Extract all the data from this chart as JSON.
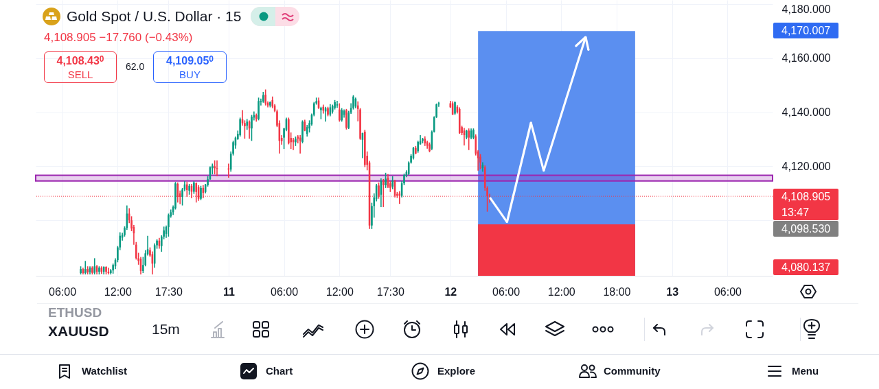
{
  "chart_data": {
    "type": "candlestick",
    "title": "Gold Spot / U.S. Dollar · 15",
    "subtitle": "4,108.905 −17.760 (−0.43%)",
    "xlim": [
      "--12-10T03:30",
      "--12-13T10:30"
    ],
    "xticks": [
      {
        "value": "--12-10T06:00",
        "label": "06:00"
      },
      {
        "value": "--12-10T12:00",
        "label": "12:00"
      },
      {
        "value": "--12-10T17:30",
        "label": "17:30"
      },
      {
        "value": "--12-11T00:00",
        "label": "11"
      },
      {
        "value": "--12-11T06:00",
        "label": "06:00"
      },
      {
        "value": "--12-11T12:00",
        "label": "12:00"
      },
      {
        "value": "--12-11T17:30",
        "label": "17:30"
      },
      {
        "value": "--12-12T00:00",
        "label": "12"
      },
      {
        "value": "--12-12T06:00",
        "label": "06:00"
      },
      {
        "value": "--12-12T12:00",
        "label": "12:00"
      },
      {
        "value": "--12-12T18:00",
        "label": "18:00"
      },
      {
        "value": "--12-13T00:00",
        "label": "13"
      },
      {
        "value": "--12-13T06:00",
        "label": "06:00"
      }
    ],
    "ylim": [
      4079.5,
      4181.5
    ],
    "yticks": [
      {
        "value": 4100,
        "label": null
      },
      {
        "value": 4120,
        "label": "4,120.000"
      },
      {
        "value": 4140,
        "label": "4,140.000"
      },
      {
        "value": 4160,
        "label": "4,160.000"
      },
      {
        "value": 4180,
        "label": "4,180.000"
      }
    ],
    "grid": true,
    "x": [
      "--12-10T08:00",
      "--12-10T08:15",
      "--12-10T08:30",
      "--12-10T08:45",
      "--12-10T09:00",
      "--12-10T09:15",
      "--12-10T09:30",
      "--12-10T09:45",
      "--12-10T10:00",
      "--12-10T10:15",
      "--12-10T10:30",
      "--12-10T10:45",
      "--12-10T11:00",
      "--12-10T11:15",
      "--12-10T11:30",
      "--12-10T11:45",
      "--12-10T12:00",
      "--12-10T12:15",
      "--12-10T12:30",
      "--12-10T12:45",
      "--12-10T13:00",
      "--12-10T13:15",
      "--12-10T13:30",
      "--12-10T13:45",
      "--12-10T14:00",
      "--12-10T14:15",
      "--12-10T14:30",
      "--12-10T14:45",
      "--12-10T15:00",
      "--12-10T15:15",
      "--12-10T15:30",
      "--12-10T15:45",
      "--12-10T16:00",
      "--12-10T16:15",
      "--12-10T16:30",
      "--12-10T16:45",
      "--12-10T17:00",
      "--12-10T17:15",
      "--12-10T17:30",
      "--12-10T17:45",
      "--12-10T18:00",
      "--12-10T18:15",
      "--12-10T18:30",
      "--12-10T18:45",
      "--12-10T19:00",
      "--12-10T19:15",
      "--12-10T19:30",
      "--12-10T19:45",
      "--12-10T20:00",
      "--12-10T20:15",
      "--12-10T20:30",
      "--12-10T20:45",
      "--12-10T21:00",
      "--12-10T21:15",
      "--12-10T21:30",
      "--12-10T21:45",
      "--12-10T22:00",
      "--12-10T22:15",
      "--12-10T22:30",
      "--12-10T22:45",
      "--12-11T00:00",
      "--12-11T00:15",
      "--12-11T00:30",
      "--12-11T00:45",
      "--12-11T01:00",
      "--12-11T01:15",
      "--12-11T01:30",
      "--12-11T01:45",
      "--12-11T02:00",
      "--12-11T02:15",
      "--12-11T02:30",
      "--12-11T02:45",
      "--12-11T03:00",
      "--12-11T03:15",
      "--12-11T03:30",
      "--12-11T03:45",
      "--12-11T04:00",
      "--12-11T04:15",
      "--12-11T04:30",
      "--12-11T04:45",
      "--12-11T05:00",
      "--12-11T05:15",
      "--12-11T05:30",
      "--12-11T05:45",
      "--12-11T06:00",
      "--12-11T06:15",
      "--12-11T06:30",
      "--12-11T06:45",
      "--12-11T07:00",
      "--12-11T07:15",
      "--12-11T07:30",
      "--12-11T07:45",
      "--12-11T08:00",
      "--12-11T08:15",
      "--12-11T08:30",
      "--12-11T08:45",
      "--12-11T09:00",
      "--12-11T09:15",
      "--12-11T09:30",
      "--12-11T09:45",
      "--12-11T10:00",
      "--12-11T10:15",
      "--12-11T10:30",
      "--12-11T10:45",
      "--12-11T11:00",
      "--12-11T11:15",
      "--12-11T11:30",
      "--12-11T11:45",
      "--12-11T12:00",
      "--12-11T12:15",
      "--12-11T12:30",
      "--12-11T12:45",
      "--12-11T13:00",
      "--12-11T13:15",
      "--12-11T13:30",
      "--12-11T13:45",
      "--12-11T14:00",
      "--12-11T14:15",
      "--12-11T14:30",
      "--12-11T14:45",
      "--12-11T15:00",
      "--12-11T15:15",
      "--12-11T15:30",
      "--12-11T15:45",
      "--12-11T16:00",
      "--12-11T16:15",
      "--12-11T16:30",
      "--12-11T16:45",
      "--12-11T17:00",
      "--12-11T17:15",
      "--12-11T17:30",
      "--12-11T17:45",
      "--12-11T18:00",
      "--12-11T18:15",
      "--12-11T18:30",
      "--12-11T18:45",
      "--12-11T19:00",
      "--12-11T19:15",
      "--12-11T19:30",
      "--12-11T19:45",
      "--12-11T20:00",
      "--12-11T20:15",
      "--12-11T20:30",
      "--12-11T20:45",
      "--12-11T21:00",
      "--12-11T21:15",
      "--12-11T21:30",
      "--12-11T21:45",
      "--12-11T22:00",
      "--12-11T22:15",
      "--12-11T22:30",
      "--12-11T22:45",
      "--12-12T00:00",
      "--12-12T00:15",
      "--12-12T00:30",
      "--12-12T00:45",
      "--12-12T01:00",
      "--12-12T01:15",
      "--12-12T01:30",
      "--12-12T01:45",
      "--12-12T02:00",
      "--12-12T02:15",
      "--12-12T02:30",
      "--12-12T02:45",
      "--12-12T03:00",
      "--12-12T03:15",
      "--12-12T03:30",
      "--12-12T03:45",
      "--12-12T04:00",
      "--12-12T04:15"
    ],
    "ohlc": [
      [
        4080.5,
        4083,
        4080,
        4082
      ],
      [
        4082,
        4082.5,
        4080,
        4080.5
      ],
      [
        4080.5,
        4085,
        4080,
        4082
      ],
      [
        4082,
        4083,
        4080,
        4080.8
      ],
      [
        4080.8,
        4083,
        4080,
        4082.5
      ],
      [
        4082.5,
        4083,
        4080,
        4080.6
      ],
      [
        4080.6,
        4086,
        4080,
        4083
      ],
      [
        4083,
        4083.5,
        4080,
        4081
      ],
      [
        4081,
        4083,
        4080,
        4082.5
      ],
      [
        4082.5,
        4083,
        4080.2,
        4081
      ],
      [
        4081,
        4083,
        4080,
        4082.8
      ],
      [
        4082.8,
        4083,
        4080,
        4081
      ],
      [
        4081,
        4082.5,
        4080,
        4080.5
      ],
      [
        4080.5,
        4082,
        4080,
        4081.5
      ],
      [
        4081.5,
        4084,
        4080.3,
        4083.5
      ],
      [
        4083,
        4086,
        4082,
        4085.3
      ],
      [
        4085.3,
        4090.5,
        4084.5,
        4090
      ],
      [
        4090,
        4095.6,
        4089,
        4094.3
      ],
      [
        4093.6,
        4095.4,
        4092.5,
        4094.6
      ],
      [
        4094.6,
        4097.8,
        4094,
        4097.2
      ],
      [
        4097.2,
        4105.5,
        4096.5,
        4102.5
      ],
      [
        4102.5,
        4104.5,
        4099,
        4100
      ],
      [
        4100,
        4101.5,
        4096,
        4097
      ],
      [
        4097.5,
        4098.3,
        4091,
        4095.2
      ],
      [
        4091,
        4092,
        4085.5,
        4086
      ],
      [
        4086,
        4088,
        4083.6,
        4085
      ],
      [
        4085.8,
        4086.5,
        4080,
        4081.3
      ],
      [
        4081.3,
        4086.5,
        4080.5,
        4083.5
      ],
      [
        4083.5,
        4089,
        4083,
        4087.8
      ],
      [
        4087.5,
        4094.3,
        4087,
        4089.3
      ],
      [
        4089,
        4090,
        4086.5,
        4087
      ],
      [
        4087.5,
        4088.5,
        4080,
        4084
      ],
      [
        4084,
        4091.5,
        4082.5,
        4090.8
      ],
      [
        4090.8,
        4093,
        4089.5,
        4092.5
      ],
      [
        4092.5,
        4093.5,
        4089.5,
        4090.5
      ],
      [
        4090.5,
        4094.5,
        4088.4,
        4094
      ],
      [
        4094,
        4097.7,
        4093,
        4096.3
      ],
      [
        4095,
        4098.1,
        4093.5,
        4097.5
      ],
      [
        4097.5,
        4102.5,
        4094,
        4101.9
      ],
      [
        4101.5,
        4104,
        4101,
        4103
      ],
      [
        4103,
        4105.5,
        4102,
        4104.9
      ],
      [
        4104.5,
        4114.2,
        4104,
        4113.7
      ],
      [
        4113.5,
        4114,
        4106.6,
        4108.7
      ],
      [
        4110,
        4111,
        4106,
        4108.7
      ],
      [
        4108.7,
        4112,
        4105.5,
        4111.4
      ],
      [
        4111.4,
        4114.6,
        4110.8,
        4113.3
      ],
      [
        4113.3,
        4114.3,
        4108.7,
        4111.2
      ],
      [
        4111,
        4113.5,
        4109.5,
        4112.8
      ],
      [
        4112.8,
        4113.5,
        4108.2,
        4110.6
      ],
      [
        4110.6,
        4114.5,
        4109.8,
        4114
      ],
      [
        4113.8,
        4114,
        4106.6,
        4110.5
      ],
      [
        4112.3,
        4113,
        4107.2,
        4108
      ],
      [
        4108,
        4112.8,
        4107.5,
        4112
      ],
      [
        4112,
        4113,
        4108.2,
        4110.2
      ],
      [
        4110.5,
        4113.5,
        4110,
        4113.2
      ],
      [
        4113,
        4116.3,
        4112.5,
        4115.2
      ],
      [
        4115.2,
        4120,
        4115,
        4119.6
      ],
      [
        4119.3,
        4121,
        4117,
        4120.2
      ],
      [
        4120,
        4122.2,
        4117,
        4119.3
      ],
      [
        4119.3,
        4122.2,
        4116.3,
        4119
      ],
      [
        4119.2,
        4121,
        4115.8,
        4118.8
      ],
      [
        4118.8,
        4125.5,
        4118,
        4124.7
      ],
      [
        4124.7,
        4129.5,
        4124,
        4128.9
      ],
      [
        4127.7,
        4131,
        4126.5,
        4130.6
      ],
      [
        4130,
        4133.2,
        4129.8,
        4132
      ],
      [
        4131.5,
        4138,
        4131,
        4137.4
      ],
      [
        4137.4,
        4140.8,
        4135,
        4135.9
      ],
      [
        4136,
        4137,
        4130.2,
        4134.8
      ],
      [
        4135,
        4137.5,
        4133.5,
        4136.5
      ],
      [
        4136.5,
        4137,
        4130.2,
        4134
      ],
      [
        4134,
        4139,
        4129.4,
        4138.3
      ],
      [
        4138,
        4140.3,
        4137,
        4138.9
      ],
      [
        4138.9,
        4139.5,
        4136.5,
        4137.4
      ],
      [
        4137.5,
        4145.4,
        4137,
        4144.1
      ],
      [
        4143.8,
        4145,
        4142.5,
        4144.2
      ],
      [
        4144,
        4147.5,
        4143.5,
        4146.3
      ],
      [
        4146.5,
        4148.4,
        4142.5,
        4143.3
      ],
      [
        4143.5,
        4144,
        4141.8,
        4142.5
      ],
      [
        4142.5,
        4144,
        4141.8,
        4143.7
      ],
      [
        4144.5,
        4145.8,
        4141.5,
        4142.1
      ],
      [
        4142.5,
        4143,
        4140,
        4140.5
      ],
      [
        4140.3,
        4141,
        4134.5,
        4135
      ],
      [
        4136,
        4137,
        4124.7,
        4129.4
      ],
      [
        4130.5,
        4131.5,
        4128,
        4129.3
      ],
      [
        4130.6,
        4134.2,
        4126.4,
        4134
      ],
      [
        4133.5,
        4138,
        4133,
        4137.4
      ],
      [
        4137.4,
        4138,
        4128.1,
        4128.5
      ],
      [
        4130.5,
        4132.5,
        4126.4,
        4128.9
      ],
      [
        4129.8,
        4130.5,
        4126,
        4128.9
      ],
      [
        4128.9,
        4131,
        4127.5,
        4130.2
      ],
      [
        4131,
        4131.5,
        4128.5,
        4130.2
      ],
      [
        4130.6,
        4131.5,
        4124.7,
        4129.4
      ],
      [
        4129,
        4137,
        4128.5,
        4136.5
      ],
      [
        4136.5,
        4137.2,
        4133,
        4133.2
      ],
      [
        4132,
        4135.3,
        4131,
        4134.5
      ],
      [
        4134,
        4137,
        4132.5,
        4136
      ],
      [
        4135.5,
        4139.5,
        4135,
        4139.1
      ],
      [
        4139.1,
        4143.8,
        4138.5,
        4143.3
      ],
      [
        4143.3,
        4145.4,
        4142.8,
        4144.1
      ],
      [
        4144.3,
        4145.4,
        4141.2,
        4141.5
      ],
      [
        4140.8,
        4142,
        4137.4,
        4141.6
      ],
      [
        4142,
        4142.8,
        4139.5,
        4140.6
      ],
      [
        4140.3,
        4142,
        4136.5,
        4141.5
      ],
      [
        4141.5,
        4142,
        4138.5,
        4139.1
      ],
      [
        4139.1,
        4143,
        4138.5,
        4141.8
      ],
      [
        4140.2,
        4142.8,
        4139.5,
        4142.4
      ],
      [
        4141.6,
        4144.5,
        4141,
        4143.7
      ],
      [
        4142.5,
        4144.2,
        4141.6,
        4142.9
      ],
      [
        4141,
        4143.3,
        4136.5,
        4137
      ],
      [
        4137,
        4141.5,
        4136.5,
        4140.8
      ],
      [
        4139,
        4141,
        4138,
        4140.5
      ],
      [
        4140.8,
        4141.2,
        4133.6,
        4134.2
      ],
      [
        4134.2,
        4140.5,
        4133.8,
        4139.9
      ],
      [
        4139.9,
        4143.3,
        4139.4,
        4141.6
      ],
      [
        4141.6,
        4146.3,
        4141,
        4145.8
      ],
      [
        4142.1,
        4145.4,
        4141.5,
        4145
      ],
      [
        4142.5,
        4144,
        4136.6,
        4141.2
      ],
      [
        4141,
        4141.5,
        4129.8,
        4130.2
      ],
      [
        4129.8,
        4132.4,
        4123,
        4132.3
      ],
      [
        4132.8,
        4133.5,
        4119.7,
        4120.5
      ],
      [
        4123.9,
        4125.5,
        4118.5,
        4120.5
      ],
      [
        4121.4,
        4122,
        4096.8,
        4098.1
      ],
      [
        4098.1,
        4106.5,
        4096.8,
        4105.3
      ],
      [
        4105.3,
        4110,
        4101,
        4108.5
      ],
      [
        4107.8,
        4113.5,
        4107,
        4112.9
      ],
      [
        4112.9,
        4114,
        4108,
        4108.7
      ],
      [
        4109.5,
        4115.5,
        4104.9,
        4114.6
      ],
      [
        4114.6,
        4115.3,
        4104.9,
        4113
      ],
      [
        4113,
        4117.6,
        4112,
        4115.4
      ],
      [
        4115.8,
        4117.1,
        4112,
        4112.5
      ],
      [
        4113.7,
        4114.5,
        4110.5,
        4112
      ],
      [
        4112.5,
        4116.3,
        4111.5,
        4114.6
      ],
      [
        4114.6,
        4115,
        4108.5,
        4109.1
      ],
      [
        4109.8,
        4110.5,
        4108.3,
        4109.1
      ],
      [
        4109.9,
        4110.8,
        4106.1,
        4109.1
      ],
      [
        4109.1,
        4114.5,
        4108.5,
        4113.7
      ],
      [
        4113.7,
        4117.3,
        4113,
        4116.8
      ],
      [
        4116.5,
        4118.5,
        4116,
        4117.9
      ],
      [
        4117.1,
        4121.8,
        4116.8,
        4121.4
      ],
      [
        4121.4,
        4124.5,
        4121,
        4123.9
      ],
      [
        4123,
        4127.2,
        4122.5,
        4126.8
      ],
      [
        4126.8,
        4127.5,
        4124.5,
        4124.7
      ],
      [
        4125.6,
        4129.5,
        4125,
        4129
      ],
      [
        4128.1,
        4131.5,
        4128,
        4129.4
      ],
      [
        4129.4,
        4130.5,
        4128.5,
        4130.2
      ],
      [
        4130.2,
        4131.1,
        4127.5,
        4128.5
      ],
      [
        4128.9,
        4129.5,
        4126.5,
        4127.6
      ],
      [
        4128.1,
        4128.8,
        4125.2,
        4125.6
      ],
      [
        4126.5,
        4133.2,
        4126,
        4132.8
      ],
      [
        4132.8,
        4138.5,
        4132.5,
        4138.2
      ],
      [
        4138.2,
        4143.2,
        4137.9,
        4142.9
      ],
      [
        4142.9,
        4143.8,
        4142,
        4143.3
      ],
      [
        4143.3,
        4144.2,
        4141.6,
        4141.8
      ],
      [
        4143.3,
        4144,
        4139,
        4139.1
      ],
      [
        4139.5,
        4144,
        4139,
        4143.7
      ],
      [
        4142,
        4142.6,
        4139.5,
        4140
      ],
      [
        4141.2,
        4141.8,
        4132,
        4132.3
      ],
      [
        4134.5,
        4135,
        4131.5,
        4132.3
      ],
      [
        4133.2,
        4134.2,
        4127.7,
        4131.5
      ],
      [
        4130.6,
        4133.5,
        4130,
        4133.2
      ],
      [
        4133.2,
        4134,
        4126,
        4130.6
      ],
      [
        4130.6,
        4134,
        4130,
        4133.2
      ],
      [
        4130.6,
        4134,
        4130,
        4133.5
      ],
      [
        4131.1,
        4131.8,
        4124,
        4124.7
      ],
      [
        4125.5,
        4126,
        4118.4,
        4123
      ],
      [
        4123.5,
        4124.5,
        4119,
        4121.4
      ],
      [
        4119.3,
        4121.5,
        4118,
        4120.5
      ],
      [
        4119.6,
        4120.3,
        4111,
        4112
      ],
      [
        4112,
        4112.6,
        4103.2,
        4109
      ],
      [
        4109.1,
        4109.8,
        4106.5,
        4108.905
      ]
    ],
    "colors": [
      "#089981",
      "#f23645",
      "#089981",
      "#f23645",
      "#089981",
      "#f23645",
      "#089981",
      "#f23645",
      "#089981",
      "#f23645",
      "#089981",
      "#f23645",
      "#f23645",
      "#089981",
      "#089981",
      "#089981",
      "#089981",
      "#089981",
      "#089981",
      "#089981",
      "#089981",
      "#f23645",
      "#f23645",
      "#f23645",
      "#f23645",
      "#f23645",
      "#f23645",
      "#089981",
      "#089981",
      "#089981",
      "#f23645",
      "#f23645",
      "#089981",
      "#089981",
      "#f23645",
      "#089981",
      "#089981",
      "#089981",
      "#089981",
      "#089981",
      "#089981",
      "#089981",
      "#f23645",
      "#f23645",
      "#089981",
      "#089981",
      "#f23645",
      "#089981",
      "#f23645",
      "#089981",
      "#f23645",
      "#f23645",
      "#089981",
      "#f23645",
      "#089981",
      "#089981",
      "#089981",
      "#089981",
      "#f23645",
      "#f23645",
      "#f23645",
      "#089981",
      "#089981",
      "#089981",
      "#089981",
      "#089981",
      "#f23645",
      "#f23645",
      "#089981",
      "#f23645",
      "#089981",
      "#089981",
      "#f23645",
      "#089981",
      "#089981",
      "#089981",
      "#f23645",
      "#f23645",
      "#089981",
      "#f23645",
      "#f23645",
      "#f23645",
      "#f23645",
      "#f23645",
      "#089981",
      "#089981",
      "#f23645",
      "#f23645",
      "#f23645",
      "#089981",
      "#f23645",
      "#f23645",
      "#089981",
      "#f23645",
      "#089981",
      "#089981",
      "#089981",
      "#089981",
      "#089981",
      "#f23645",
      "#089981",
      "#f23645",
      "#089981",
      "#f23645",
      "#089981",
      "#089981",
      "#089981",
      "#089981",
      "#f23645",
      "#089981",
      "#089981",
      "#f23645",
      "#089981",
      "#089981",
      "#089981",
      "#089981",
      "#f23645",
      "#f23645",
      "#089981",
      "#f23645",
      "#f23645",
      "#f23645",
      "#089981",
      "#089981",
      "#089981",
      "#f23645",
      "#089981",
      "#f23645",
      "#089981",
      "#f23645",
      "#f23645",
      "#089981",
      "#f23645",
      "#f23645",
      "#f23645",
      "#089981",
      "#089981",
      "#089981",
      "#089981",
      "#089981",
      "#089981",
      "#f23645",
      "#089981",
      "#089981",
      "#089981",
      "#f23645",
      "#f23645",
      "#f23645",
      "#089981",
      "#089981",
      "#089981",
      "#089981",
      "#f23645",
      "#f23645",
      "#089981",
      "#f23645",
      "#f23645",
      "#f23645",
      "#f23645",
      "#089981",
      "#f23645",
      "#089981",
      "#089981",
      "#f23645",
      "#f23645",
      "#f23645",
      "#089981",
      "#f23645",
      "#f23645",
      "#f23645"
    ],
    "series": [
      {
        "type": "area",
        "color": "#5b8ff0",
        "x": [
          "--12-12T03:00",
          "--12-12T20:00"
        ],
        "values": [
          4170.007,
          4170.007
        ]
      },
      {
        "type": "area",
        "color": "#f23645",
        "x": [
          "--12-12T03:00",
          "--12-12T20:00"
        ],
        "values": [
          4098.53,
          4098.53
        ]
      }
    ],
    "bands": [
      {
        "axis": "y",
        "from": 4114.6,
        "to": 4116.7,
        "color": "#9c27b0"
      }
    ],
    "ref_lines": [
      {
        "axis": "y",
        "value": 4108.905,
        "label": "4,108.905\n13:47",
        "color": "#f23645",
        "line_style": "dotted"
      }
    ],
    "annotations": [
      "4,108.43$^{0}$",
      "SELL",
      "62.0",
      "4,109.05$^{0}$",
      "BUY",
      "ETHUSD",
      "XAUUSD",
      "15m",
      "Watchlist",
      "Chart",
      "Explore",
      "Community",
      "Menu",
      "4,170.007",
      "4,098.530",
      "4,080.137"
    ]
  }
}
